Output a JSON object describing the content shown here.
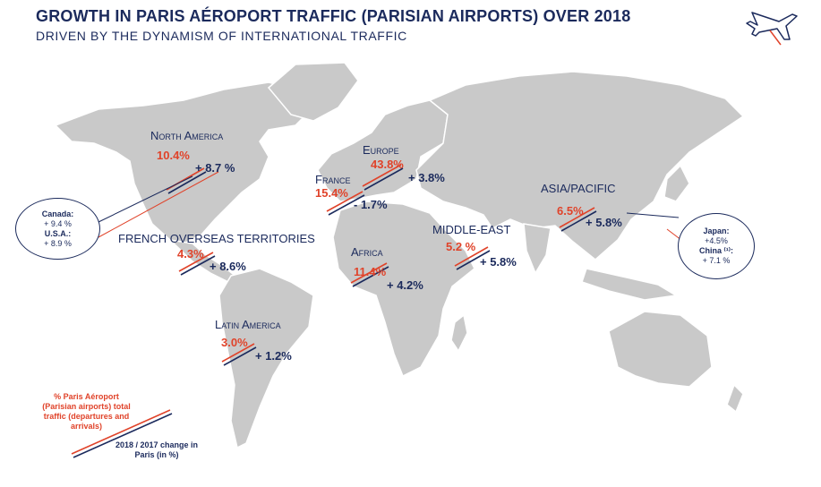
{
  "header": {
    "title": "GROWTH IN PARIS AÉROPORT TRAFFIC (PARISIAN AIRPORTS) OVER 2018",
    "subtitle": "DRIVEN BY THE DYNAMISM OF INTERNATIONAL TRAFFIC"
  },
  "regions": {
    "north_america": {
      "name": "North America",
      "share": "10.4%",
      "change": "+ 8.7 %"
    },
    "europe": {
      "name": "Europe",
      "share": "43.8%",
      "change": "+ 3.8%"
    },
    "france": {
      "name": "France",
      "share": "15.4%",
      "change": "- 1.7%"
    },
    "asia_pacific": {
      "name": "ASIA/PACIFIC",
      "share": "6.5%",
      "change": "+ 5.8%"
    },
    "middle_east": {
      "name": "MIDDLE-EAST",
      "share": "5.2 %",
      "change": "+ 5.8%"
    },
    "french_overseas": {
      "name": "FRENCH OVERSEAS TERRITORIES",
      "share": "4.3%",
      "change": "+ 8.6%"
    },
    "africa": {
      "name": "Africa",
      "share": "11.4%",
      "change": "+ 4.2%"
    },
    "latin_america": {
      "name": "Latin America",
      "share": "3.0%",
      "change": "+ 1.2%"
    }
  },
  "callouts": {
    "north_america_detail": {
      "canada_label": "Canada:",
      "canada_value": "+ 9.4 %",
      "usa_label": "U.S.A.:",
      "usa_value": "+ 8.9 %"
    },
    "asia_detail": {
      "japan_label": "Japan:",
      "japan_value": "+4.5%",
      "china_label": "China ⁽¹⁾:",
      "china_value": "+ 7.1 %"
    }
  },
  "legend": {
    "share_text": "% Paris Aéroport (Parisian airports) total traffic (departures and arrivals)",
    "change_text": "2018 / 2017 change in Paris (in %)"
  },
  "colors": {
    "navy": "#1b2a5c",
    "red": "#e0432a",
    "land": "#c8c8c8"
  },
  "icons": [
    "airplane-icon"
  ]
}
